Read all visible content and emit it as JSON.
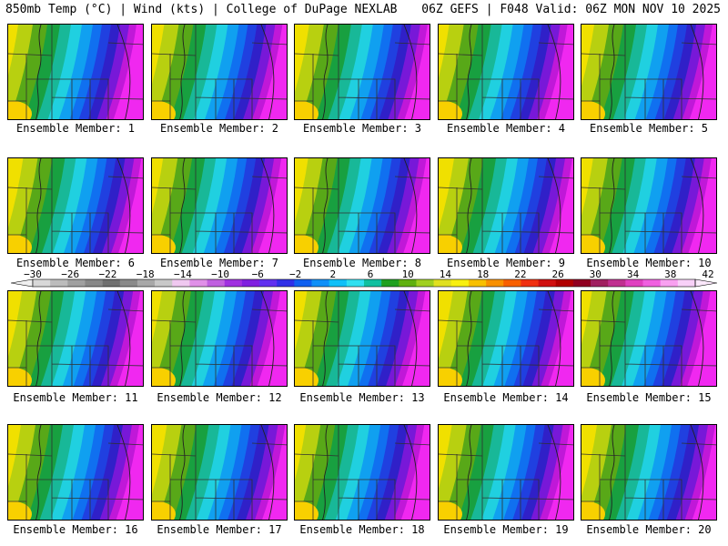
{
  "header": {
    "left": "850mb Temp (°C) | Wind (kts) | College of DuPage NEXLAB",
    "right": "06Z GEFS | F048 Valid: 06Z MON NOV 10 2025"
  },
  "panel_label_prefix": "Ensemble Member: ",
  "members": [
    "1",
    "2",
    "3",
    "4",
    "5",
    "6",
    "7",
    "8",
    "9",
    "10",
    "11",
    "12",
    "13",
    "14",
    "15",
    "16",
    "17",
    "18",
    "19",
    "20"
  ],
  "colorbar": {
    "labels": [
      "−30",
      "−26",
      "−22",
      "−18",
      "−14",
      "−10",
      "−6",
      "−2",
      "2",
      "6",
      "10",
      "14",
      "18",
      "22",
      "26",
      "30",
      "34",
      "38",
      "42"
    ],
    "colors": [
      "#d8d8d8",
      "#bcbcbc",
      "#a0a0a0",
      "#888888",
      "#707070",
      "#8a8a8a",
      "#a8a8a8",
      "#c8c8c8",
      "#f0c8f0",
      "#e090e8",
      "#c060e0",
      "#a030e0",
      "#8020e0",
      "#6030f0",
      "#3030e8",
      "#1060f0",
      "#1090f8",
      "#10c0f8",
      "#30e0f0",
      "#10c0a0",
      "#20a020",
      "#60b010",
      "#a0d020",
      "#e0e020",
      "#f8f010",
      "#f8c000",
      "#f89000",
      "#f86000",
      "#f03010",
      "#d01010",
      "#b00000",
      "#900020",
      "#a02060",
      "#c03090",
      "#e040c0",
      "#f060e0",
      "#f8a0f0",
      "#f8d0f8"
    ]
  }
}
